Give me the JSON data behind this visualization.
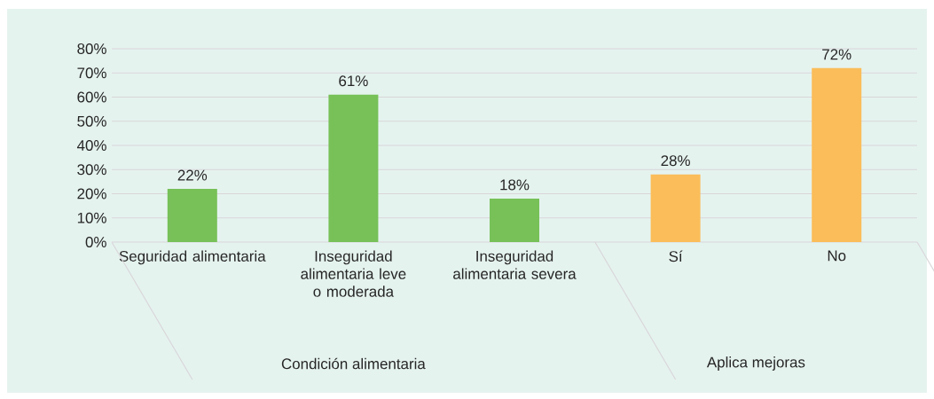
{
  "chart_data": {
    "type": "bar",
    "categories": [
      "Seguridad alimentaria",
      "Inseguridad alimentaria leve o moderada",
      "Inseguridad alimentaria severa",
      "Sí",
      "No"
    ],
    "values": [
      22,
      61,
      18,
      28,
      72
    ],
    "colors": [
      "#77c158",
      "#77c158",
      "#77c158",
      "#fbbd59",
      "#fbbd59"
    ],
    "value_labels": [
      "22%",
      "61%",
      "18%",
      "28%",
      "72%"
    ],
    "ylim": [
      0,
      80
    ],
    "yticks": [
      {
        "value": 0,
        "label": "0%"
      },
      {
        "value": 10,
        "label": "10%"
      },
      {
        "value": 20,
        "label": "20%"
      },
      {
        "value": 30,
        "label": "30%"
      },
      {
        "value": 40,
        "label": "40%"
      },
      {
        "value": 50,
        "label": "50%"
      },
      {
        "value": 60,
        "label": "60%"
      },
      {
        "value": 70,
        "label": "70%"
      },
      {
        "value": 80,
        "label": "80%"
      }
    ],
    "grid": "y",
    "annotations": [
      "Condición alimentaria",
      "Aplica mejoras"
    ]
  }
}
